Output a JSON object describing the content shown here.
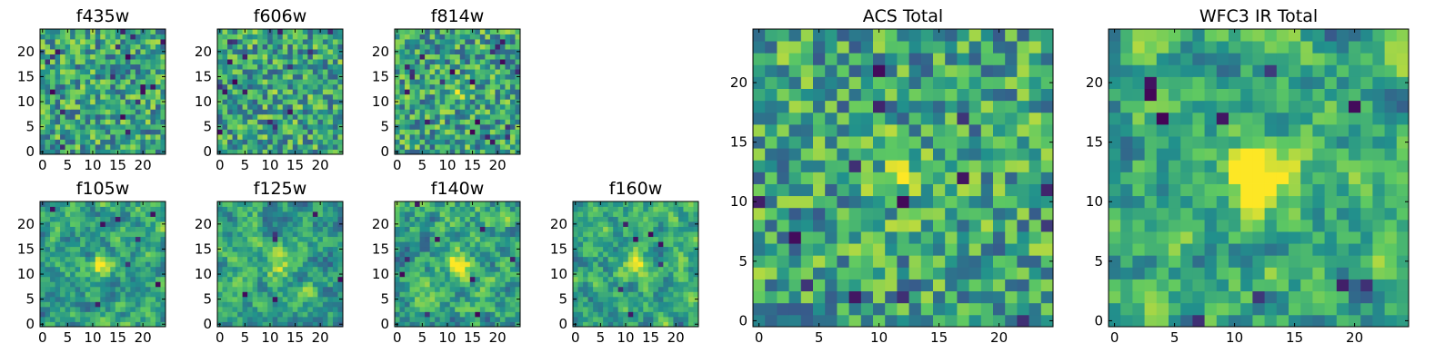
{
  "figure": {
    "background": "#ffffff",
    "colormap": [
      "#440154",
      "#3b528b",
      "#21918c",
      "#5ec962",
      "#fde725"
    ]
  },
  "chart_data": [
    {
      "type": "heatmap",
      "title": "f435w",
      "x_ticks": [
        "0",
        "5",
        "10",
        "15",
        "20"
      ],
      "y_ticks": [
        "0",
        "5",
        "10",
        "15",
        "20"
      ],
      "grid_size": [
        25,
        25
      ],
      "seed": 11,
      "smooth": 0,
      "blob": 0,
      "dark_spots": 18
    },
    {
      "type": "heatmap",
      "title": "f606w",
      "x_ticks": [
        "0",
        "5",
        "10",
        "15",
        "20"
      ],
      "y_ticks": [
        "0",
        "5",
        "10",
        "15",
        "20"
      ],
      "grid_size": [
        25,
        25
      ],
      "seed": 23,
      "smooth": 0,
      "blob": 0.2,
      "dark_spots": 16
    },
    {
      "type": "heatmap",
      "title": "f814w",
      "x_ticks": [
        "0",
        "5",
        "10",
        "15",
        "20"
      ],
      "y_ticks": [
        "0",
        "5",
        "10",
        "15",
        "20"
      ],
      "grid_size": [
        25,
        25
      ],
      "seed": 37,
      "smooth": 0,
      "blob": 0.5,
      "dark_spots": 20
    },
    {
      "type": "heatmap",
      "title": "f105w",
      "x_ticks": [
        "0",
        "5",
        "10",
        "15",
        "20"
      ],
      "y_ticks": [
        "0",
        "5",
        "10",
        "15",
        "20"
      ],
      "grid_size": [
        25,
        25
      ],
      "seed": 41,
      "smooth": 1,
      "blob": 1.2,
      "dark_spots": 8
    },
    {
      "type": "heatmap",
      "title": "f125w",
      "x_ticks": [
        "0",
        "5",
        "10",
        "15",
        "20"
      ],
      "y_ticks": [
        "0",
        "5",
        "10",
        "15",
        "20"
      ],
      "grid_size": [
        25,
        25
      ],
      "seed": 53,
      "smooth": 1,
      "blob": 1.0,
      "dark_spots": 6
    },
    {
      "type": "heatmap",
      "title": "f140w",
      "x_ticks": [
        "0",
        "5",
        "10",
        "15",
        "20"
      ],
      "y_ticks": [
        "0",
        "5",
        "10",
        "15",
        "20"
      ],
      "grid_size": [
        25,
        25
      ],
      "seed": 67,
      "smooth": 1,
      "blob": 1.4,
      "dark_spots": 9
    },
    {
      "type": "heatmap",
      "title": "f160w",
      "x_ticks": [
        "0",
        "5",
        "10",
        "15",
        "20"
      ],
      "y_ticks": [
        "0",
        "5",
        "10",
        "15",
        "20"
      ],
      "grid_size": [
        25,
        25
      ],
      "seed": 79,
      "smooth": 1,
      "blob": 1.3,
      "dark_spots": 7
    },
    {
      "type": "heatmap",
      "title": "ACS Total",
      "x_ticks": [
        "0",
        "5",
        "10",
        "15",
        "20"
      ],
      "y_ticks": [
        "0",
        "5",
        "10",
        "15",
        "20"
      ],
      "grid_size": [
        25,
        25
      ],
      "seed": 97,
      "smooth": 0,
      "blob": 0.8,
      "dark_spots": 14
    },
    {
      "type": "heatmap",
      "title": "WFC3 IR Total",
      "x_ticks": [
        "0",
        "5",
        "10",
        "15",
        "20"
      ],
      "y_ticks": [
        "0",
        "5",
        "10",
        "15",
        "20"
      ],
      "grid_size": [
        25,
        25
      ],
      "seed": 113,
      "smooth": 1,
      "blob": 2.2,
      "dark_spots": 10
    }
  ]
}
